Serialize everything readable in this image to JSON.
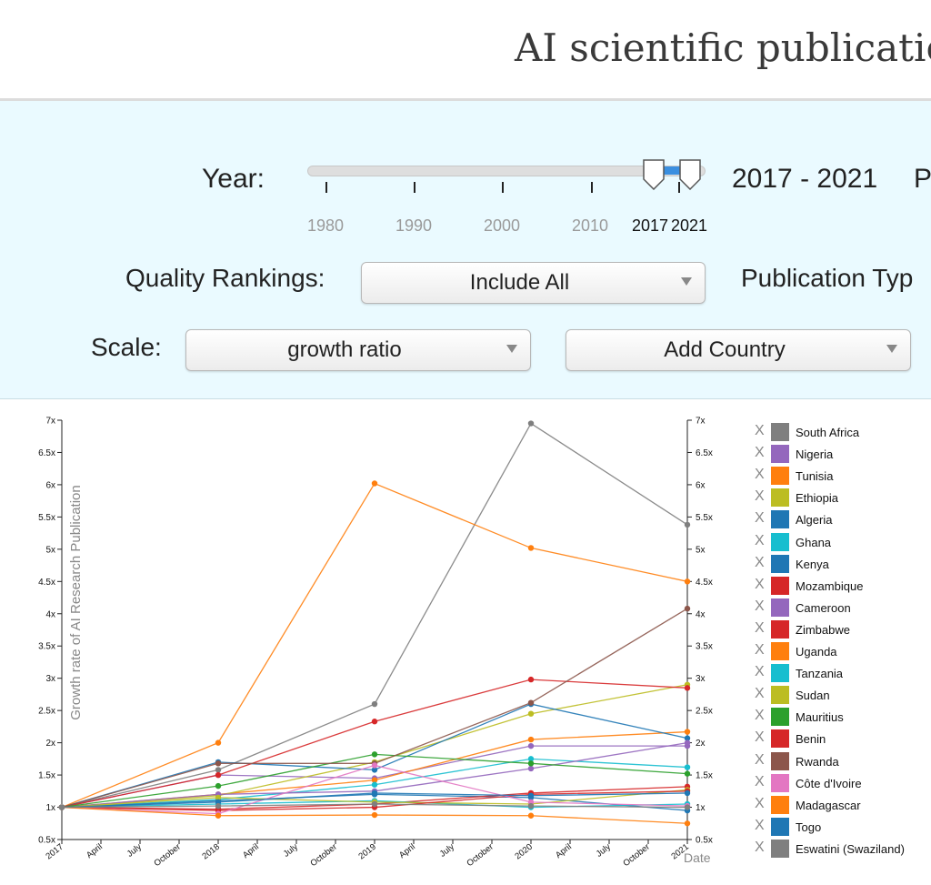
{
  "header": {
    "title": "AI scientific publication"
  },
  "controls": {
    "year_label": "Year:",
    "year_ticks": [
      "1980",
      "1990",
      "2000",
      "2010",
      "2017",
      "2021"
    ],
    "year_range": "2017 - 2021",
    "year_range_start": 2017,
    "year_range_end": 2021,
    "cut_label": "P",
    "quality_label": "Quality Rankings:",
    "quality_value": "Include All",
    "pubtype_label": "Publication Typ",
    "scale_label": "Scale:",
    "scale_value": "growth ratio",
    "country_placeholder": "Add Country"
  },
  "chart_data": {
    "type": "line",
    "ylabel": "Growth rate of AI Research Publication",
    "xlabel": "Date",
    "x": [
      "2017",
      "2018",
      "2019",
      "2020",
      "2021"
    ],
    "x_tick_labels": [
      "2017",
      "April",
      "July",
      "October",
      "2018",
      "April",
      "July",
      "October",
      "2019",
      "April",
      "July",
      "October",
      "2020",
      "April",
      "July",
      "October",
      "2021"
    ],
    "y_tick_labels": [
      "0.5x",
      "1x",
      "1.5x",
      "2x",
      "2.5x",
      "3x",
      "3.5x",
      "4x",
      "4.5x",
      "5x",
      "5.5x",
      "6x",
      "6.5x",
      "7x"
    ],
    "ylim": [
      0.5,
      7
    ],
    "grid": false,
    "legend_position": "right",
    "series": [
      {
        "name": "South Africa",
        "color": "#7f7f7f",
        "values": [
          1,
          1.58,
          2.6,
          6.95,
          5.38
        ]
      },
      {
        "name": "Nigeria",
        "color": "#9467bd",
        "values": [
          1,
          1.5,
          1.45,
          1.95,
          1.95
        ]
      },
      {
        "name": "Tunisia",
        "color": "#ff7f0e",
        "values": [
          1,
          1.2,
          1.42,
          2.05,
          2.17
        ]
      },
      {
        "name": "Ethiopia",
        "color": "#bcbd22",
        "values": [
          1,
          1.18,
          1.7,
          2.45,
          2.9
        ]
      },
      {
        "name": "Algeria",
        "color": "#1f77b4",
        "values": [
          1,
          1.7,
          1.58,
          2.6,
          2.07
        ]
      },
      {
        "name": "Ghana",
        "color": "#17becf",
        "values": [
          1,
          1.12,
          1.35,
          1.75,
          1.62
        ]
      },
      {
        "name": "Kenya",
        "color": "#1f77b4",
        "values": [
          1,
          1.1,
          1.2,
          1.15,
          0.95
        ]
      },
      {
        "name": "Mozambique",
        "color": "#d62728",
        "values": [
          1,
          0.97,
          1.05,
          1.22,
          1.32
        ]
      },
      {
        "name": "Cameroon",
        "color": "#9467bd",
        "values": [
          1,
          1.2,
          1.25,
          1.6,
          2.0
        ]
      },
      {
        "name": "Zimbabwe",
        "color": "#d62728",
        "values": [
          1,
          1.5,
          2.33,
          2.98,
          2.85
        ]
      },
      {
        "name": "Uganda",
        "color": "#ff7f0e",
        "values": [
          1,
          2.0,
          6.02,
          5.02,
          4.5
        ]
      },
      {
        "name": "Tanzania",
        "color": "#17becf",
        "values": [
          1,
          1.05,
          1.1,
          1.0,
          1.05
        ]
      },
      {
        "name": "Sudan",
        "color": "#bcbd22",
        "values": [
          1,
          1.15,
          1.08,
          1.05,
          1.27
        ]
      },
      {
        "name": "Mauritius",
        "color": "#2ca02c",
        "values": [
          1,
          1.33,
          1.82,
          1.68,
          1.52
        ]
      },
      {
        "name": "Benin",
        "color": "#d62728",
        "values": [
          1,
          0.95,
          1.0,
          1.2,
          1.25
        ]
      },
      {
        "name": "Rwanda",
        "color": "#8c564b",
        "values": [
          1,
          1.68,
          1.68,
          2.62,
          4.08
        ]
      },
      {
        "name": "Côte d'Ivoire",
        "color": "#e377c2",
        "values": [
          1,
          0.9,
          1.65,
          1.08,
          1.02
        ]
      },
      {
        "name": "Madagascar",
        "color": "#ff7f0e",
        "values": [
          1,
          0.87,
          0.88,
          0.87,
          0.75
        ]
      },
      {
        "name": "Togo",
        "color": "#1f77b4",
        "values": [
          1,
          1.08,
          1.22,
          1.18,
          1.22
        ]
      },
      {
        "name": "Eswatini (Swaziland)",
        "color": "#7f7f7f",
        "values": [
          1,
          1.02,
          1.05,
          1.02,
          1.0
        ]
      }
    ]
  }
}
